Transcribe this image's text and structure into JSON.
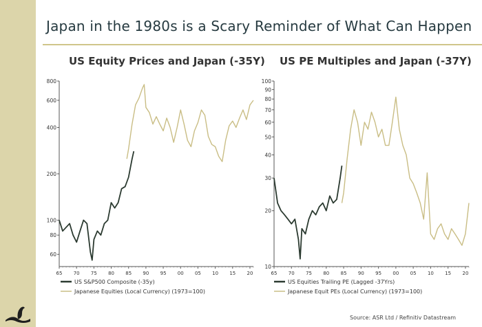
{
  "title": "Japan in the 1980s is a Scary Reminder of What Can Happen",
  "source": "Source:  ASR Ltd  /  Refinitiv  Datastream",
  "colors": {
    "us": "#2b3a30",
    "japan": "#c9bd84",
    "band": "#dcd5aa",
    "rule": "#cfc58a"
  },
  "chart_data": [
    {
      "type": "line",
      "title": "US Equity Prices and Japan (-35Y)",
      "xlabel": "",
      "ylabel": "",
      "yscale": "log",
      "ylim": [
        50,
        800
      ],
      "xlim": [
        65,
        21
      ],
      "x_ticks": [
        "65",
        "70",
        "75",
        "80",
        "85",
        "90",
        "95",
        "00",
        "05",
        "10",
        "15",
        "20"
      ],
      "y_ticks": [
        60,
        80,
        100,
        200,
        400,
        600,
        800
      ],
      "grid": false,
      "legend_position": "bottom-left",
      "series": [
        {
          "name": "US S&P500 Composite (-35y)",
          "x": [
            65,
            66,
            67,
            68,
            69,
            70,
            71,
            72,
            73,
            74,
            74.5,
            75,
            76,
            77,
            78,
            79,
            80,
            81,
            82,
            83,
            84,
            85,
            86,
            86.5
          ],
          "y": [
            100,
            85,
            90,
            95,
            80,
            72,
            85,
            100,
            95,
            62,
            55,
            75,
            85,
            80,
            95,
            100,
            130,
            120,
            130,
            160,
            165,
            190,
            250,
            280
          ]
        },
        {
          "name": "Japanese Equities (Local Currency) (1973=100)",
          "x": [
            84.5,
            85,
            86,
            87,
            88,
            89,
            89.5,
            90,
            91,
            92,
            93,
            94,
            95,
            96,
            97,
            98,
            99,
            100,
            101,
            102,
            103,
            104,
            105,
            106,
            107,
            108,
            109,
            110,
            111,
            112,
            113,
            114,
            115,
            116,
            117,
            118,
            119,
            120,
            121
          ],
          "y": [
            250,
            290,
            420,
            560,
            620,
            720,
            760,
            540,
            500,
            420,
            470,
            420,
            380,
            460,
            400,
            320,
            400,
            520,
            420,
            330,
            300,
            380,
            430,
            520,
            480,
            350,
            310,
            300,
            260,
            240,
            330,
            410,
            440,
            400,
            460,
            520,
            450,
            560,
            600
          ]
        }
      ]
    },
    {
      "type": "line",
      "title": "US PE Multiples and Japan (-37Y)",
      "xlabel": "",
      "ylabel": "",
      "yscale": "log",
      "ylim": [
        10,
        100
      ],
      "xlim": [
        65,
        21
      ],
      "x_ticks": [
        "65",
        "70",
        "75",
        "80",
        "85",
        "90",
        "95",
        "00",
        "05",
        "10",
        "15",
        "20"
      ],
      "y_ticks": [
        10,
        20,
        30,
        40,
        50,
        60,
        70,
        80,
        90,
        100
      ],
      "grid": false,
      "legend_position": "bottom-left",
      "series": [
        {
          "name": "US Equities Trailing PE (Lagged -37Yrs)",
          "x": [
            65,
            66,
            67,
            68,
            69,
            70,
            71,
            72,
            72.5,
            73,
            74,
            75,
            76,
            77,
            78,
            79,
            80,
            81,
            82,
            83,
            84,
            84.5
          ],
          "y": [
            30,
            22,
            20,
            19,
            18,
            17,
            18,
            14,
            11,
            16,
            15,
            18,
            20,
            19,
            21,
            22,
            20,
            24,
            22,
            23,
            30,
            35
          ]
        },
        {
          "name": "Japanese Equit PEs (Local Currency) (1973=100)",
          "x": [
            84.5,
            85,
            86,
            87,
            88,
            89,
            90,
            91,
            92,
            93,
            94,
            95,
            96,
            97,
            98,
            99,
            100,
            101,
            102,
            103,
            104,
            105,
            106,
            107,
            108,
            109,
            110,
            111,
            112,
            113,
            114,
            115,
            116,
            117,
            118,
            119,
            120,
            121
          ],
          "y": [
            22,
            25,
            38,
            55,
            70,
            60,
            45,
            60,
            55,
            68,
            60,
            50,
            55,
            45,
            45,
            60,
            82,
            55,
            45,
            40,
            30,
            28,
            25,
            22,
            18,
            32,
            15,
            14,
            16,
            17,
            15,
            14,
            16,
            15,
            14,
            13,
            15,
            22
          ]
        }
      ]
    }
  ]
}
